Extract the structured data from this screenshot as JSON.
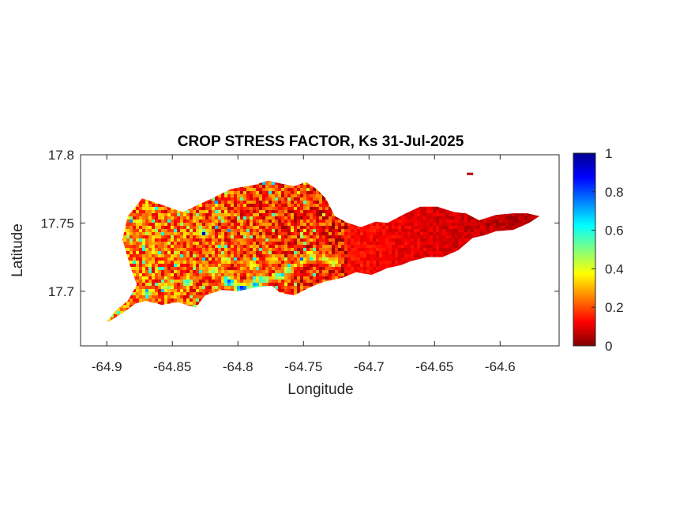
{
  "chart_data": {
    "type": "heatmap",
    "title": "CROP STRESS FACTOR, Ks  31-Jul-2025",
    "xlabel": "Longitude",
    "ylabel": "Latitude",
    "xlim": [
      -64.92,
      -64.555
    ],
    "ylim": [
      17.66,
      17.8
    ],
    "x_ticks": [
      -64.9,
      -64.85,
      -64.8,
      -64.75,
      -64.7,
      -64.65,
      -64.6
    ],
    "x_tick_labels": [
      "-64.9",
      "-64.85",
      "-64.8",
      "-64.75",
      "-64.7",
      "-64.65",
      "-64.6"
    ],
    "y_ticks": [
      17.7,
      17.75,
      17.8
    ],
    "y_tick_labels": [
      "17.7",
      "17.75",
      "17.8"
    ],
    "colorbar": {
      "colormap": "jet",
      "range": [
        0,
        1
      ],
      "ticks": [
        0,
        0.2,
        0.4,
        0.6,
        0.8,
        1
      ],
      "tick_labels": [
        "0",
        "0.2",
        "0.4",
        "0.6",
        "0.8",
        "1"
      ]
    },
    "region_outline": [
      [
        -64.9,
        17.678
      ],
      [
        -64.893,
        17.686
      ],
      [
        -64.884,
        17.693
      ],
      [
        -64.877,
        17.705
      ],
      [
        -64.882,
        17.718
      ],
      [
        -64.888,
        17.738
      ],
      [
        -64.884,
        17.755
      ],
      [
        -64.873,
        17.768
      ],
      [
        -64.86,
        17.764
      ],
      [
        -64.842,
        17.758
      ],
      [
        -64.822,
        17.767
      ],
      [
        -64.805,
        17.775
      ],
      [
        -64.787,
        17.778
      ],
      [
        -64.777,
        17.781
      ],
      [
        -64.768,
        17.779
      ],
      [
        -64.757,
        17.777
      ],
      [
        -64.748,
        17.78
      ],
      [
        -64.74,
        17.775
      ],
      [
        -64.733,
        17.768
      ],
      [
        -64.726,
        17.755
      ],
      [
        -64.716,
        17.75
      ],
      [
        -64.706,
        17.747
      ],
      [
        -64.695,
        17.751
      ],
      [
        -64.686,
        17.75
      ],
      [
        -64.672,
        17.757
      ],
      [
        -64.661,
        17.762
      ],
      [
        -64.648,
        17.762
      ],
      [
        -64.635,
        17.758
      ],
      [
        -64.626,
        17.757
      ],
      [
        -64.616,
        17.752
      ],
      [
        -64.603,
        17.756
      ],
      [
        -64.59,
        17.757
      ],
      [
        -64.579,
        17.757
      ],
      [
        -64.57,
        17.755
      ],
      [
        -64.578,
        17.75
      ],
      [
        -64.59,
        17.745
      ],
      [
        -64.603,
        17.744
      ],
      [
        -64.612,
        17.741
      ],
      [
        -64.621,
        17.739
      ],
      [
        -64.632,
        17.73
      ],
      [
        -64.644,
        17.725
      ],
      [
        -64.656,
        17.725
      ],
      [
        -64.668,
        17.722
      ],
      [
        -64.676,
        17.719
      ],
      [
        -64.686,
        17.717
      ],
      [
        -64.698,
        17.712
      ],
      [
        -64.71,
        17.714
      ],
      [
        -64.72,
        17.71
      ],
      [
        -64.734,
        17.707
      ],
      [
        -64.745,
        17.703
      ],
      [
        -64.757,
        17.697
      ],
      [
        -64.768,
        17.699
      ],
      [
        -64.774,
        17.704
      ],
      [
        -64.786,
        17.703
      ],
      [
        -64.8,
        17.7
      ],
      [
        -64.812,
        17.701
      ],
      [
        -64.825,
        17.697
      ],
      [
        -64.832,
        17.688
      ],
      [
        -64.846,
        17.692
      ],
      [
        -64.858,
        17.69
      ],
      [
        -64.87,
        17.693
      ],
      [
        -64.878,
        17.691
      ],
      [
        -64.888,
        17.684
      ],
      [
        -64.898,
        17.678
      ]
    ],
    "hotspots": [
      {
        "lon": -64.798,
        "lat": 17.703,
        "ks": 0.92
      },
      {
        "lon": -64.808,
        "lat": 17.708,
        "ks": 0.78
      },
      {
        "lon": -64.788,
        "lat": 17.705,
        "ks": 0.72
      },
      {
        "lon": -64.782,
        "lat": 17.71,
        "ks": 0.6
      },
      {
        "lon": -64.77,
        "lat": 17.712,
        "ks": 0.55
      },
      {
        "lon": -64.763,
        "lat": 17.717,
        "ks": 0.5
      },
      {
        "lon": -64.752,
        "lat": 17.724,
        "ks": 0.45
      },
      {
        "lon": -64.745,
        "lat": 17.728,
        "ks": 0.42
      },
      {
        "lon": -64.735,
        "lat": 17.725,
        "ks": 0.4
      },
      {
        "lon": -64.728,
        "lat": 17.722,
        "ks": 0.45
      },
      {
        "lon": -64.84,
        "lat": 17.708,
        "ks": 0.55
      },
      {
        "lon": -64.855,
        "lat": 17.704,
        "ks": 0.5
      },
      {
        "lon": -64.87,
        "lat": 17.7,
        "ks": 0.55
      },
      {
        "lon": -64.82,
        "lat": 17.716,
        "ks": 0.5
      },
      {
        "lon": -64.828,
        "lat": 17.744,
        "ks": 0.55
      },
      {
        "lon": -64.876,
        "lat": 17.752,
        "ks": 0.4
      },
      {
        "lon": -64.866,
        "lat": 17.73,
        "ks": 0.35
      },
      {
        "lon": -64.81,
        "lat": 17.724,
        "ks": 0.45
      },
      {
        "lon": -64.79,
        "lat": 17.72,
        "ks": 0.45
      },
      {
        "lon": -64.775,
        "lat": 17.725,
        "ks": 0.4
      }
    ],
    "gradient": {
      "west_ks": 0.25,
      "center_ks": 0.15,
      "east_ks": 0.04
    },
    "isolated_islets": [
      {
        "lon": -64.623,
        "lat": 17.786,
        "ks": 0.05
      }
    ]
  }
}
